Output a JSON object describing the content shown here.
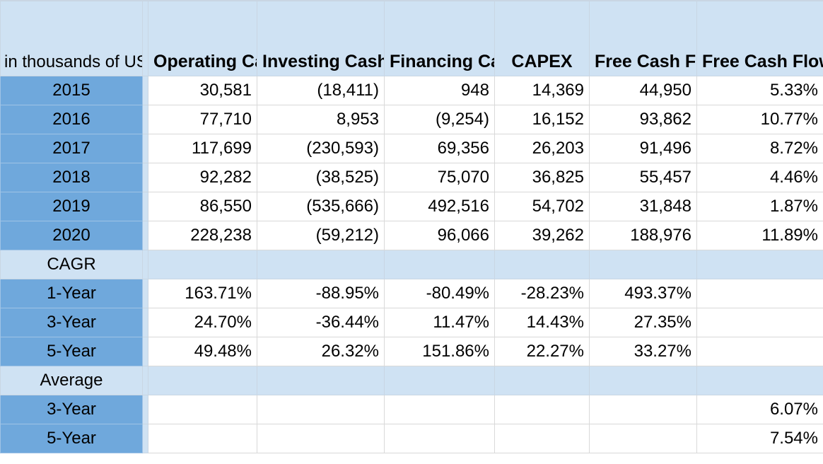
{
  "header": {
    "label": "in thousands of USD",
    "columns": [
      "Operating Cash Flow",
      "Investing Cash Flow",
      "Financing Cash Flow",
      "CAPEX",
      "Free Cash Flow",
      "Free Cash Flow Margin"
    ]
  },
  "rows": [
    {
      "year": "2015",
      "values": [
        "30,581",
        "(18,411)",
        "948",
        "14,369",
        "44,950",
        "5.33%"
      ]
    },
    {
      "year": "2016",
      "values": [
        "77,710",
        "8,953",
        "(9,254)",
        "16,152",
        "93,862",
        "10.77%"
      ]
    },
    {
      "year": "2017",
      "values": [
        "117,699",
        "(230,593)",
        "69,356",
        "26,203",
        "91,496",
        "8.72%"
      ]
    },
    {
      "year": "2018",
      "values": [
        "92,282",
        "(38,525)",
        "75,070",
        "36,825",
        "55,457",
        "4.46%"
      ]
    },
    {
      "year": "2019",
      "values": [
        "86,550",
        "(535,666)",
        "492,516",
        "54,702",
        "31,848",
        "1.87%"
      ]
    },
    {
      "year": "2020",
      "values": [
        "228,238",
        "(59,212)",
        "96,066",
        "39,262",
        "188,976",
        "11.89%"
      ]
    }
  ],
  "cagr": {
    "label": "CAGR",
    "rows": [
      {
        "label": "1-Year",
        "values": [
          "163.71%",
          "-88.95%",
          "-80.49%",
          "-28.23%",
          "493.37%",
          ""
        ]
      },
      {
        "label": "3-Year",
        "values": [
          "24.70%",
          "-36.44%",
          "11.47%",
          "14.43%",
          "27.35%",
          ""
        ]
      },
      {
        "label": "5-Year",
        "values": [
          "49.48%",
          "26.32%",
          "151.86%",
          "22.27%",
          "33.27%",
          ""
        ]
      }
    ]
  },
  "average": {
    "label": "Average",
    "rows": [
      {
        "label": "3-Year",
        "values": [
          "",
          "",
          "",
          "",
          "",
          "6.07%"
        ]
      },
      {
        "label": "5-Year",
        "values": [
          "",
          "",
          "",
          "",
          "",
          "7.54%"
        ]
      }
    ]
  }
}
